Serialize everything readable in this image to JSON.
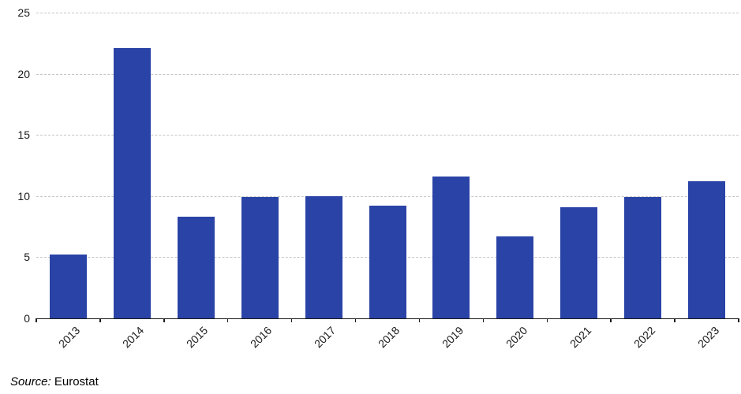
{
  "chart_data": {
    "type": "bar",
    "title": "",
    "xlabel": "",
    "ylabel": "",
    "categories": [
      "2013",
      "2014",
      "2015",
      "2016",
      "2017",
      "2018",
      "2019",
      "2020",
      "2021",
      "2022",
      "2023"
    ],
    "values": [
      5.2,
      22.1,
      8.3,
      9.9,
      10.0,
      9.2,
      11.6,
      6.7,
      9.1,
      9.9,
      11.2
    ],
    "ylim": [
      0,
      25
    ],
    "yticks": [
      0,
      5,
      10,
      15,
      20,
      25
    ],
    "grid": "horizontal-dashed",
    "legend": "none",
    "bar_color": "#2a43a6",
    "grid_color": "#c6c6c6",
    "axis_color": "#1a1a1a"
  },
  "source": {
    "label": "Source:",
    "value": " Eurostat"
  }
}
